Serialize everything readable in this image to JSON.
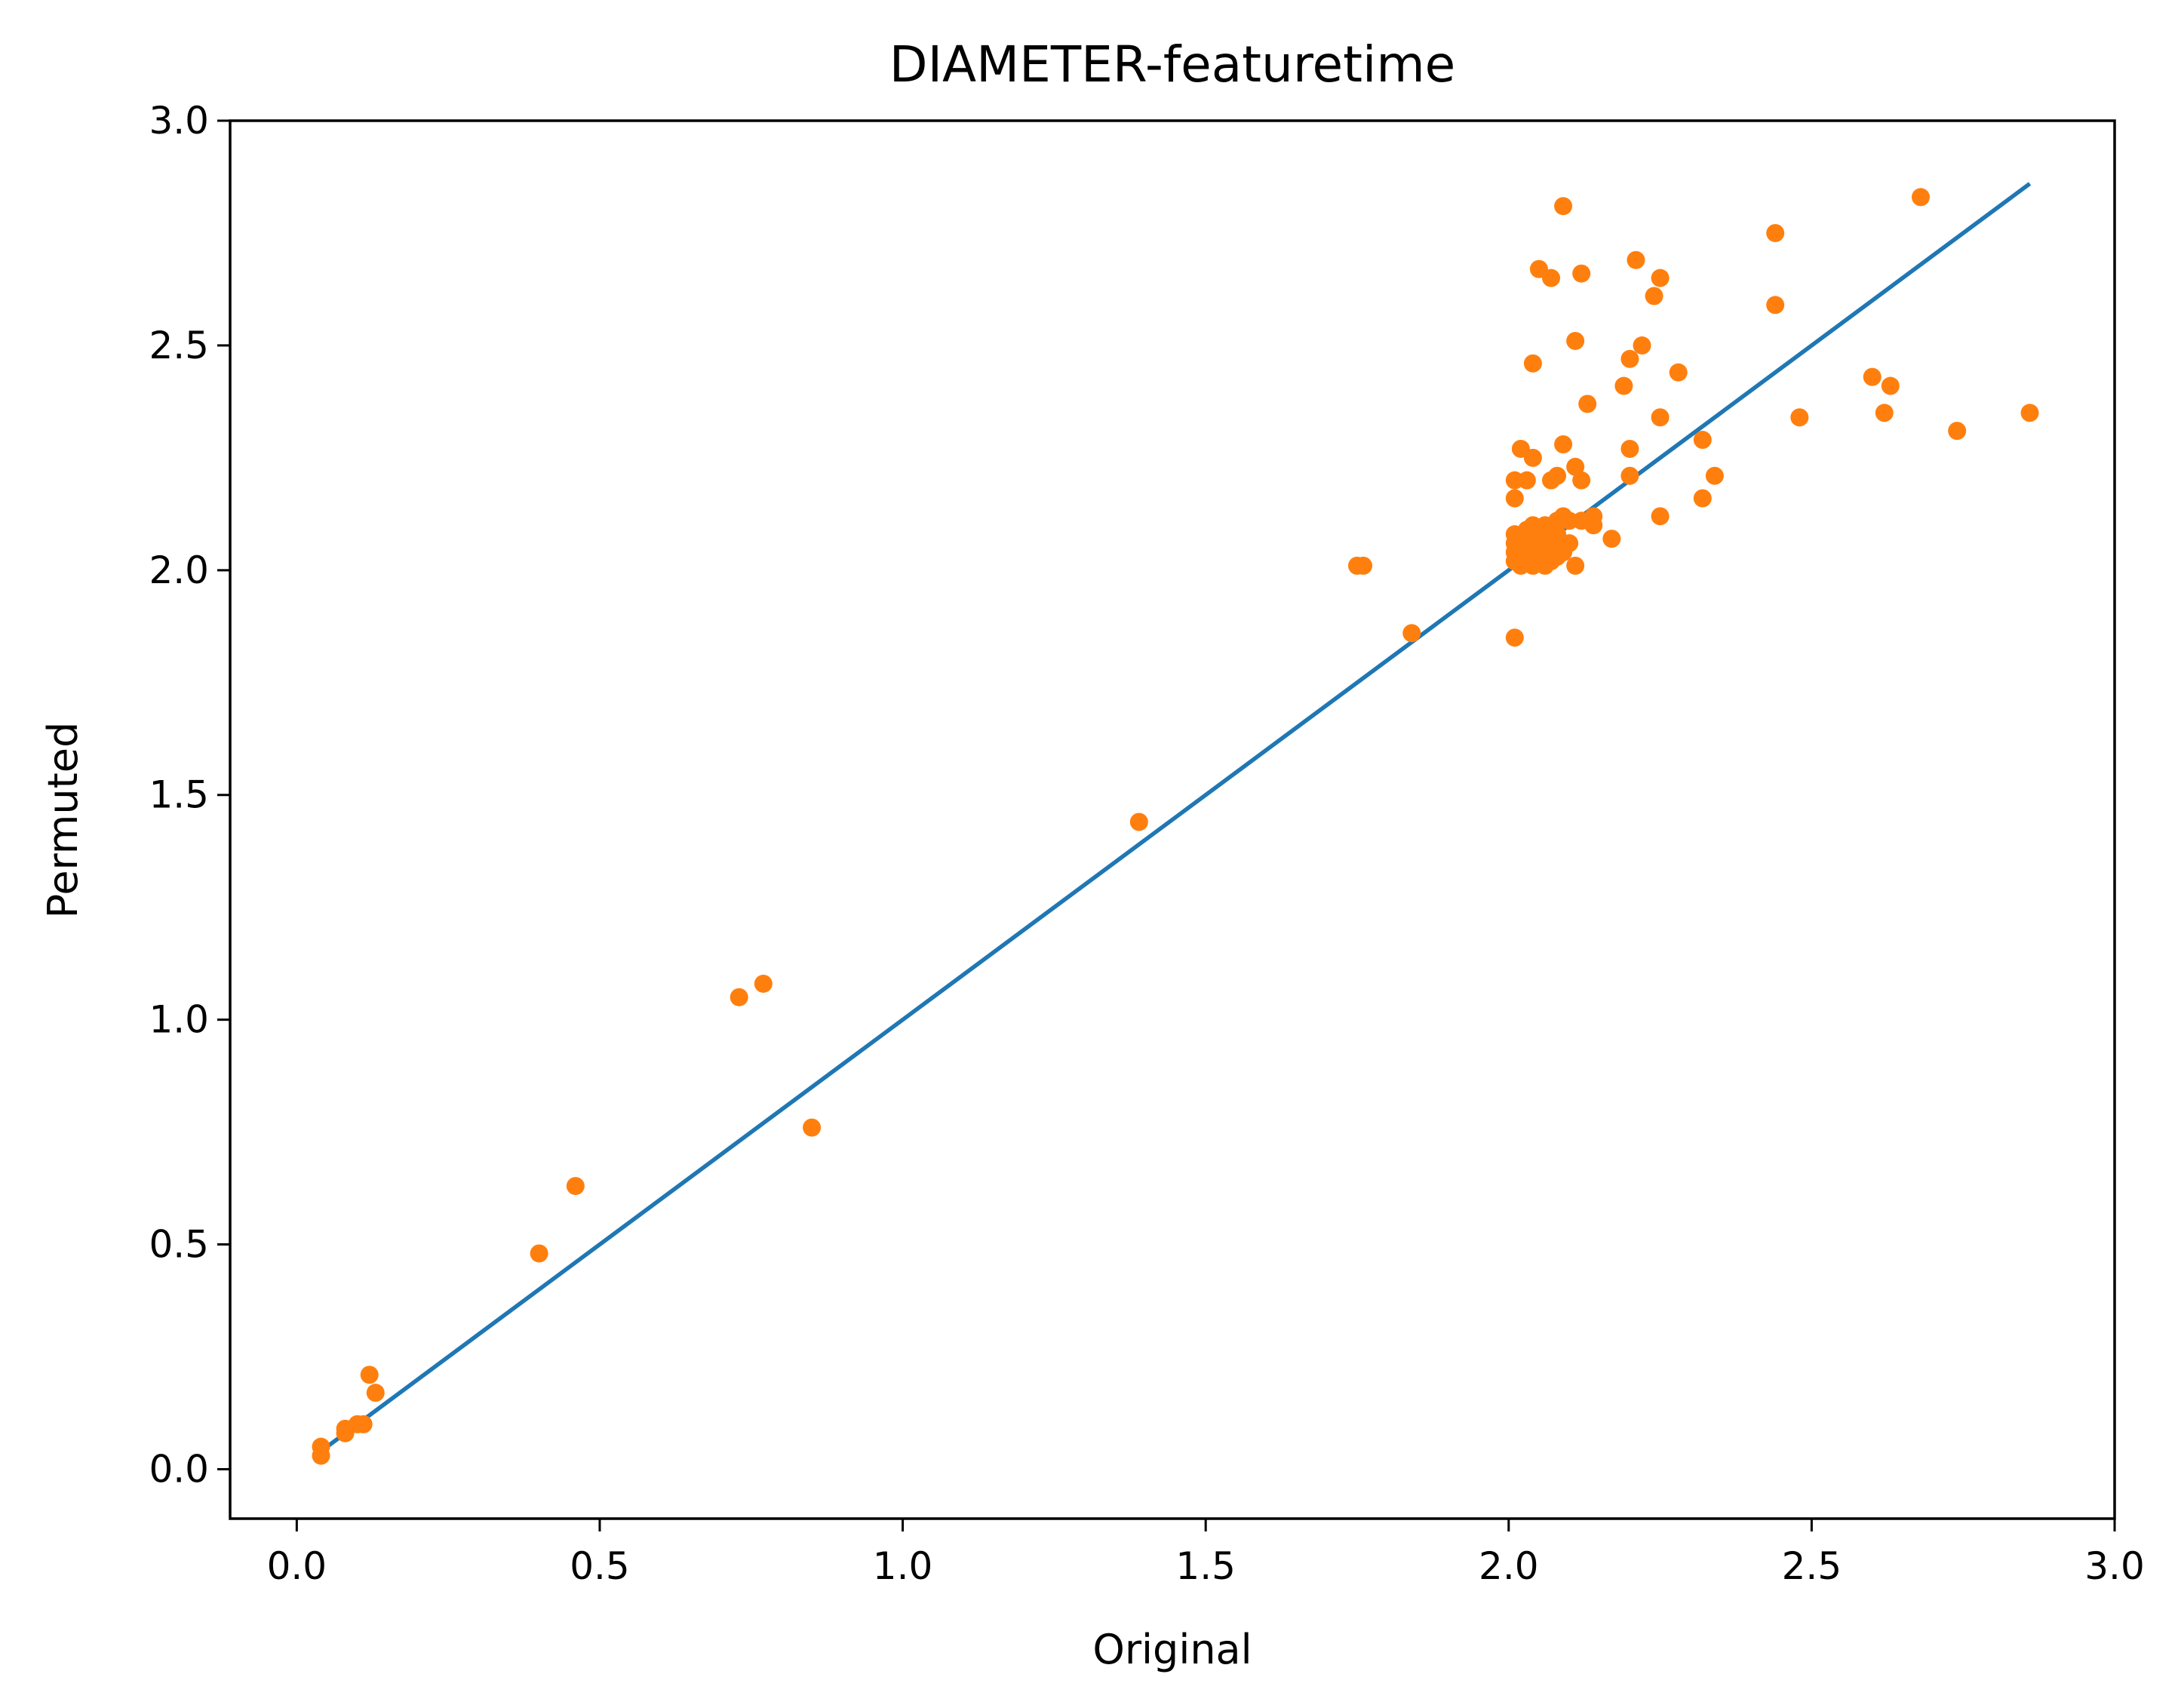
{
  "chart_data": {
    "type": "scatter",
    "title": "DIAMETER-featuretime",
    "xlabel": "Original",
    "ylabel": "Permuted",
    "xlim": [
      -0.11,
      3.0
    ],
    "ylim": [
      -0.11,
      3.0
    ],
    "x_ticks": [
      "0.0",
      "0.5",
      "1.0",
      "1.5",
      "2.0",
      "2.5",
      "3.0"
    ],
    "y_ticks": [
      "0.0",
      "0.5",
      "1.0",
      "1.5",
      "2.0",
      "2.5",
      "3.0"
    ],
    "grid": false,
    "colors": {
      "line": "#1f77b4",
      "points": "#ff7f0e"
    },
    "line": {
      "x": [
        0.03,
        2.86
      ],
      "y": [
        0.03,
        2.86
      ]
    },
    "points": [
      [
        0.04,
        0.05
      ],
      [
        0.04,
        0.03
      ],
      [
        0.08,
        0.08
      ],
      [
        0.08,
        0.09
      ],
      [
        0.1,
        0.1
      ],
      [
        0.11,
        0.1
      ],
      [
        0.12,
        0.21
      ],
      [
        0.13,
        0.17
      ],
      [
        0.4,
        0.48
      ],
      [
        0.46,
        0.63
      ],
      [
        0.73,
        1.05
      ],
      [
        0.77,
        1.08
      ],
      [
        0.85,
        0.76
      ],
      [
        1.39,
        1.44
      ],
      [
        1.75,
        2.01
      ],
      [
        1.76,
        2.01
      ],
      [
        1.84,
        1.86
      ],
      [
        2.01,
        1.85
      ],
      [
        2.01,
        2.02
      ],
      [
        2.01,
        2.04
      ],
      [
        2.01,
        2.06
      ],
      [
        2.01,
        2.08
      ],
      [
        2.01,
        2.16
      ],
      [
        2.01,
        2.2
      ],
      [
        2.02,
        2.01
      ],
      [
        2.02,
        2.03
      ],
      [
        2.02,
        2.05
      ],
      [
        2.02,
        2.07
      ],
      [
        2.02,
        2.27
      ],
      [
        2.03,
        2.02
      ],
      [
        2.03,
        2.04
      ],
      [
        2.03,
        2.06
      ],
      [
        2.03,
        2.09
      ],
      [
        2.03,
        2.2
      ],
      [
        2.04,
        2.01
      ],
      [
        2.04,
        2.03
      ],
      [
        2.04,
        2.05
      ],
      [
        2.04,
        2.08
      ],
      [
        2.04,
        2.1
      ],
      [
        2.04,
        2.25
      ],
      [
        2.04,
        2.46
      ],
      [
        2.05,
        2.02
      ],
      [
        2.05,
        2.04
      ],
      [
        2.05,
        2.06
      ],
      [
        2.05,
        2.07
      ],
      [
        2.05,
        2.67
      ],
      [
        2.06,
        2.01
      ],
      [
        2.06,
        2.03
      ],
      [
        2.06,
        2.05
      ],
      [
        2.06,
        2.08
      ],
      [
        2.06,
        2.1
      ],
      [
        2.07,
        2.02
      ],
      [
        2.07,
        2.04
      ],
      [
        2.07,
        2.06
      ],
      [
        2.07,
        2.2
      ],
      [
        2.07,
        2.65
      ],
      [
        2.08,
        2.03
      ],
      [
        2.08,
        2.05
      ],
      [
        2.08,
        2.08
      ],
      [
        2.08,
        2.11
      ],
      [
        2.08,
        2.21
      ],
      [
        2.09,
        2.04
      ],
      [
        2.09,
        2.06
      ],
      [
        2.09,
        2.12
      ],
      [
        2.09,
        2.28
      ],
      [
        2.09,
        2.81
      ],
      [
        2.1,
        2.06
      ],
      [
        2.1,
        2.11
      ],
      [
        2.11,
        2.01
      ],
      [
        2.11,
        2.23
      ],
      [
        2.11,
        2.51
      ],
      [
        2.12,
        2.11
      ],
      [
        2.12,
        2.2
      ],
      [
        2.12,
        2.66
      ],
      [
        2.13,
        2.37
      ],
      [
        2.14,
        2.1
      ],
      [
        2.14,
        2.12
      ],
      [
        2.17,
        2.07
      ],
      [
        2.19,
        2.41
      ],
      [
        2.2,
        2.21
      ],
      [
        2.2,
        2.27
      ],
      [
        2.2,
        2.47
      ],
      [
        2.21,
        2.69
      ],
      [
        2.22,
        2.5
      ],
      [
        2.24,
        2.61
      ],
      [
        2.25,
        2.12
      ],
      [
        2.25,
        2.34
      ],
      [
        2.25,
        2.65
      ],
      [
        2.28,
        2.44
      ],
      [
        2.32,
        2.16
      ],
      [
        2.32,
        2.29
      ],
      [
        2.34,
        2.21
      ],
      [
        2.44,
        2.59
      ],
      [
        2.44,
        2.75
      ],
      [
        2.48,
        2.34
      ],
      [
        2.6,
        2.43
      ],
      [
        2.62,
        2.35
      ],
      [
        2.63,
        2.41
      ],
      [
        2.68,
        2.83
      ],
      [
        2.74,
        2.31
      ],
      [
        2.86,
        2.35
      ]
    ]
  }
}
